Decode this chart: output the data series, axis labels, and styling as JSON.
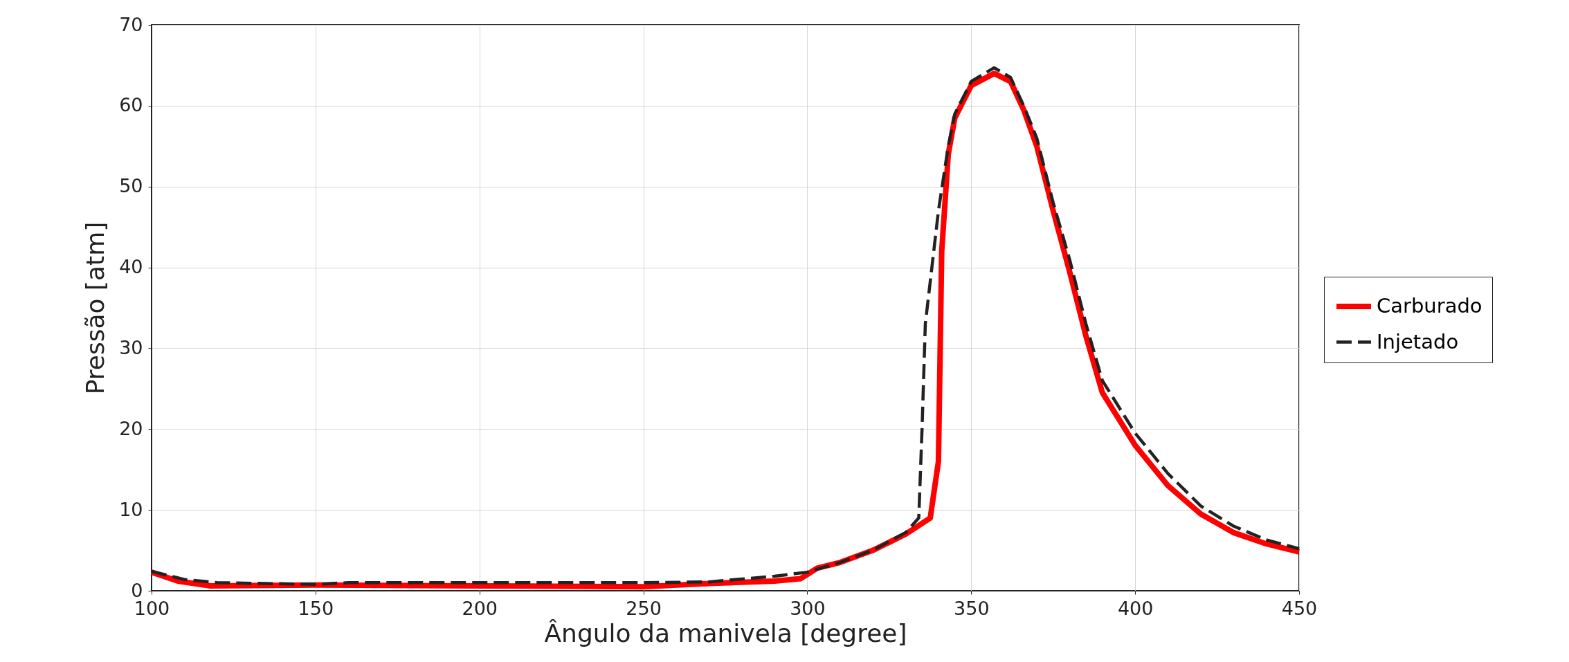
{
  "chart_data": {
    "type": "line",
    "xlabel": "Ângulo da manivela [degree]",
    "ylabel": "Pressão [atm]",
    "xlim": [
      100,
      450
    ],
    "xticks": [
      100,
      150,
      200,
      250,
      300,
      350,
      400,
      450
    ],
    "ylim": [
      0,
      70
    ],
    "yticks": [
      0,
      10,
      20,
      30,
      40,
      50,
      60,
      70
    ],
    "grid": true,
    "legend": "right",
    "marker": "none",
    "series": [
      {
        "name": "Carburado",
        "color": "#ff0000",
        "line_style": "solid",
        "x": [
          100,
          108,
          118,
          150,
          200,
          250,
          270,
          290,
          298,
          303,
          310,
          320,
          330,
          337.5,
          340,
          341,
          343,
          345,
          350,
          357,
          362,
          366,
          370,
          375,
          380,
          385,
          390,
          400,
          410,
          420,
          430,
          440,
          450
        ],
        "values": [
          2.3,
          1.2,
          0.6,
          0.7,
          0.6,
          0.5,
          0.9,
          1.2,
          1.5,
          2.8,
          3.5,
          5,
          7,
          9,
          16,
          42,
          54,
          58.5,
          62.5,
          64,
          63,
          59.5,
          55,
          47,
          39.5,
          31.5,
          24.5,
          18,
          13,
          9.5,
          7.2,
          5.8,
          4.8
        ]
      },
      {
        "name": "Injetado",
        "color": "#222222",
        "line_style": "dashed",
        "x": [
          100,
          110,
          120,
          150,
          160,
          250,
          270,
          290,
          300,
          310,
          320,
          330,
          334,
          335,
          336,
          338,
          340,
          343,
          345,
          350,
          357,
          362,
          366,
          370,
          375,
          380,
          385,
          390,
          400,
          410,
          420,
          430,
          440,
          450
        ],
        "values": [
          2.4,
          1.4,
          1,
          0.8,
          1,
          1,
          1.1,
          1.8,
          2.3,
          3.5,
          5,
          7.2,
          9,
          20,
          33,
          40,
          47,
          55,
          59,
          63,
          64.7,
          63.5,
          60,
          56,
          48,
          41,
          33,
          26,
          19.5,
          14.5,
          10.5,
          8,
          6.3,
          5.2
        ]
      }
    ]
  }
}
